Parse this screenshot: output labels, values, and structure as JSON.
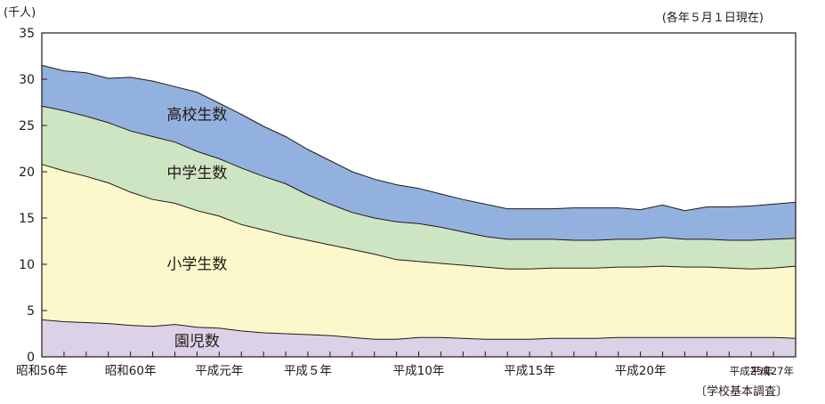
{
  "chart_data": {
    "type": "area",
    "stacked": true,
    "ylabel": "(千人)",
    "note": "(各年５月１日現在)",
    "source": "〔学校基本調査〕",
    "ylim": [
      0,
      35
    ],
    "yticks": [
      0,
      5,
      10,
      15,
      20,
      25,
      30,
      35
    ],
    "x": [
      1981,
      1982,
      1983,
      1984,
      1985,
      1986,
      1987,
      1988,
      1989,
      1990,
      1991,
      1992,
      1993,
      1994,
      1995,
      1996,
      1997,
      1998,
      1999,
      2000,
      2001,
      2002,
      2003,
      2004,
      2005,
      2006,
      2007,
      2008,
      2009,
      2010,
      2011,
      2012,
      2013,
      2014,
      2015
    ],
    "x_tick_labels": [
      {
        "x": 1981,
        "label": "昭和56年"
      },
      {
        "x": 1985,
        "label": "昭和60年"
      },
      {
        "x": 1989,
        "label": "平成元年"
      },
      {
        "x": 1993,
        "label": "平成５年"
      },
      {
        "x": 1998,
        "label": "平成10年"
      },
      {
        "x": 2003,
        "label": "平成15年"
      },
      {
        "x": 2008,
        "label": "平成20年"
      },
      {
        "x": 2013,
        "label": "平成25年"
      },
      {
        "x": 2015,
        "label": "平成27年"
      }
    ],
    "series": [
      {
        "name": "園児数",
        "color": "#dcd2e8",
        "values": [
          4.0,
          3.8,
          3.7,
          3.6,
          3.4,
          3.3,
          3.5,
          3.2,
          3.1,
          2.8,
          2.6,
          2.5,
          2.4,
          2.3,
          2.1,
          1.9,
          1.9,
          2.1,
          2.1,
          2.0,
          1.9,
          1.9,
          1.9,
          2.0,
          2.0,
          2.0,
          2.1,
          2.1,
          2.1,
          2.1,
          2.1,
          2.1,
          2.1,
          2.1,
          2.0
        ]
      },
      {
        "name": "小学生数",
        "color": "#fdf8cc",
        "values": [
          16.8,
          16.3,
          15.8,
          15.2,
          14.4,
          13.7,
          13.1,
          12.6,
          12.1,
          11.5,
          11.1,
          10.6,
          10.2,
          9.8,
          9.5,
          9.2,
          8.6,
          8.2,
          8.0,
          7.9,
          7.8,
          7.6,
          7.6,
          7.6,
          7.6,
          7.6,
          7.6,
          7.6,
          7.7,
          7.6,
          7.6,
          7.5,
          7.4,
          7.5,
          7.8
        ]
      },
      {
        "name": "中学生数",
        "color": "#cee5c4",
        "values": [
          6.3,
          6.5,
          6.5,
          6.5,
          6.6,
          6.8,
          6.6,
          6.4,
          6.2,
          6.1,
          5.8,
          5.6,
          4.9,
          4.4,
          4.0,
          3.9,
          4.1,
          4.1,
          3.9,
          3.6,
          3.3,
          3.2,
          3.2,
          3.1,
          3.0,
          3.0,
          3.0,
          3.0,
          3.1,
          3.0,
          3.0,
          3.0,
          3.1,
          3.1,
          3.0
        ]
      },
      {
        "name": "高校生数",
        "color": "#93b1de",
        "values": [
          4.4,
          4.3,
          4.7,
          4.8,
          5.8,
          6.0,
          6.0,
          6.4,
          6.0,
          5.8,
          5.4,
          5.1,
          4.9,
          4.7,
          4.4,
          4.2,
          4.0,
          3.8,
          3.6,
          3.5,
          3.5,
          3.3,
          3.3,
          3.3,
          3.5,
          3.5,
          3.4,
          3.2,
          3.5,
          3.1,
          3.5,
          3.6,
          3.7,
          3.8,
          3.9
        ]
      }
    ],
    "series_label_positions": [
      "inside"
    ],
    "grid": false
  }
}
